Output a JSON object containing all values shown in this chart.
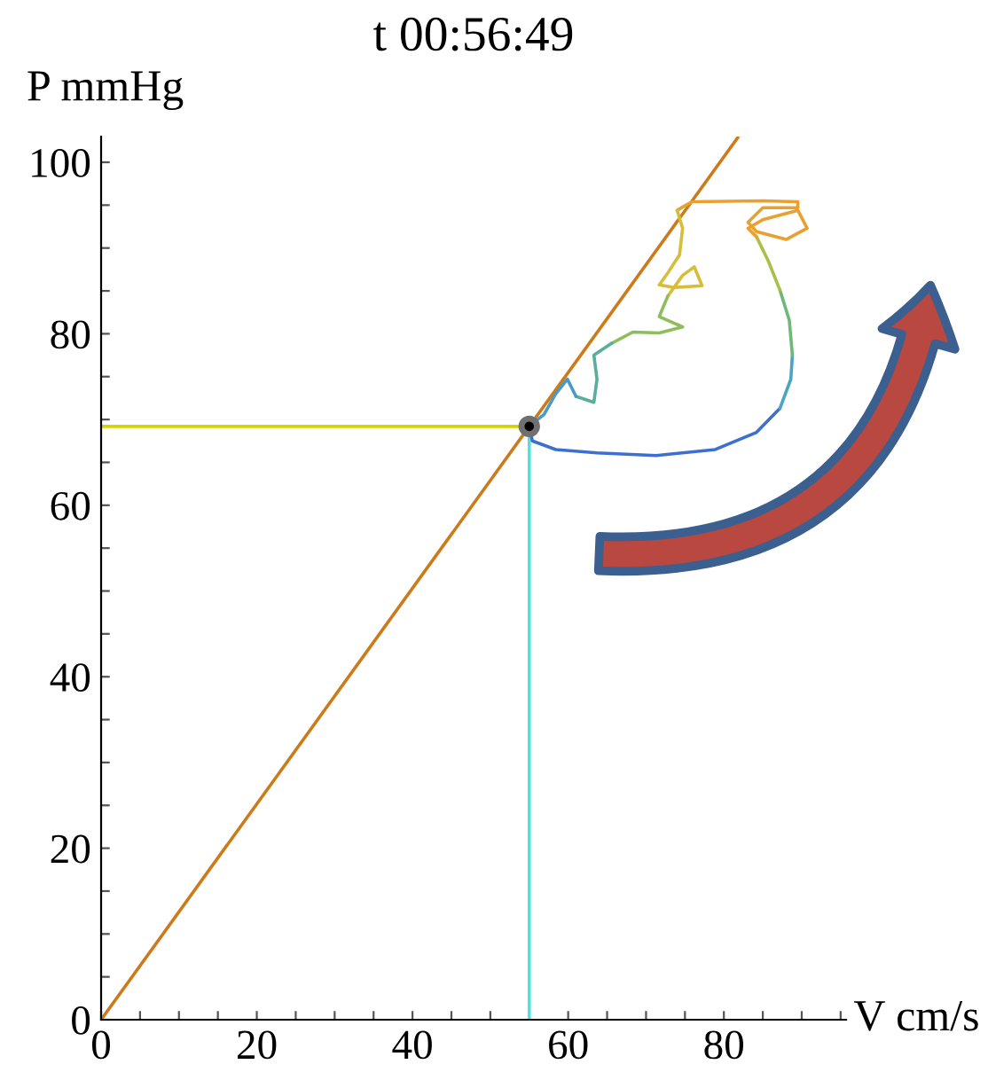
{
  "chart_data": {
    "type": "line",
    "title": "t 00:56:49",
    "xlabel": "V cm/s",
    "ylabel": "P mmHg",
    "xlim": [
      0,
      95.7
    ],
    "ylim": [
      0,
      103
    ],
    "xticks": [
      0,
      {
        "value": 5,
        "label": null
      },
      {
        "value": 10,
        "label": null
      },
      {
        "value": 15,
        "label": null
      },
      20,
      {
        "value": 25,
        "label": null
      },
      {
        "value": 30,
        "label": null
      },
      {
        "value": 35,
        "label": null
      },
      40,
      {
        "value": 45,
        "label": null
      },
      {
        "value": 50,
        "label": null
      },
      {
        "value": 55,
        "label": null
      },
      60,
      {
        "value": 65,
        "label": null
      },
      {
        "value": 70,
        "label": null
      },
      {
        "value": 75,
        "label": null
      },
      80,
      {
        "value": 85,
        "label": null
      },
      {
        "value": 90,
        "label": null
      },
      {
        "value": 95,
        "label": null
      }
    ],
    "yticks": [
      0,
      {
        "value": 5,
        "label": null
      },
      {
        "value": 10,
        "label": null
      },
      {
        "value": 15,
        "label": null
      },
      20,
      {
        "value": 25,
        "label": null
      },
      {
        "value": 30,
        "label": null
      },
      {
        "value": 35,
        "label": null
      },
      40,
      {
        "value": 45,
        "label": null
      },
      {
        "value": 50,
        "label": null
      },
      {
        "value": 55,
        "label": null
      },
      60,
      {
        "value": 65,
        "label": null
      },
      {
        "value": 70,
        "label": null
      },
      {
        "value": 75,
        "label": null
      },
      80,
      {
        "value": 85,
        "label": null
      },
      {
        "value": 90,
        "label": null
      },
      {
        "value": 95,
        "label": null
      },
      100
    ],
    "grid": false,
    "line_style": "solid",
    "series": [
      {
        "color": "#cc7a1a",
        "x": [
          0,
          81.8
        ],
        "values": [
          0,
          102.9
        ]
      },
      {
        "color": "#d4d400",
        "x": [
          0,
          55.0
        ],
        "values": [
          69.2,
          69.2
        ]
      },
      {
        "color": "#50e0e0",
        "x": [
          55.0,
          55.0
        ],
        "values": [
          0,
          69.2
        ]
      },
      {
        "color": "#3d6fd0",
        "x": [
          55.0,
          55.4,
          58.4,
          63.7,
          71.3,
          78.9,
          84.2,
          87.2
        ],
        "values": [
          69.2,
          67.5,
          66.5,
          66.1,
          65.8,
          66.5,
          68.5,
          71.3
        ]
      },
      {
        "color": "#4aa6c0",
        "x": [
          87.2,
          88.6,
          88.8
        ],
        "values": [
          71.3,
          74.7,
          77.5
        ]
      },
      {
        "color": "#6fb87a",
        "x": [
          88.8,
          88.4,
          87.2
        ],
        "values": [
          77.5,
          81.6,
          85.1
        ]
      },
      {
        "color": "#a8c04a",
        "x": [
          87.2,
          85.7,
          84.2
        ],
        "values": [
          85.1,
          88.5,
          91.3
        ]
      },
      {
        "color": "#e8a030",
        "x": [
          84.2,
          83.1,
          85.0,
          89.5,
          90.7,
          88.0,
          84.2,
          83.1,
          85.0,
          89.5,
          89.5,
          85.0,
          75.9,
          74.0
        ],
        "values": [
          91.3,
          92.3,
          93.3,
          94.4,
          92.3,
          91.0,
          91.9,
          93.0,
          94.7,
          94.7,
          95.4,
          95.5,
          95.4,
          94.4
        ]
      },
      {
        "color": "#d6bd3a",
        "x": [
          74.0,
          74.7,
          74.3,
          72.8,
          71.7,
          73.6,
          77.2,
          76.2,
          74.7,
          72.8
        ],
        "values": [
          94.4,
          92.3,
          89.2,
          87.1,
          85.7,
          85.4,
          85.6,
          87.8,
          86.8,
          84.4
        ]
      },
      {
        "color": "#8fbc5c",
        "x": [
          72.8,
          71.7,
          74.7,
          71.7,
          68.3,
          65.6
        ],
        "values": [
          84.4,
          82.0,
          80.8,
          80.1,
          80.2,
          78.9
        ]
      },
      {
        "color": "#5aae9a",
        "x": [
          65.6,
          63.3,
          63.7,
          63.3,
          61.0
        ],
        "values": [
          78.9,
          77.5,
          74.7,
          72.0,
          72.7
        ]
      },
      {
        "color": "#4a9ac8",
        "x": [
          61.0,
          59.9,
          58.4,
          56.9,
          55.0
        ],
        "values": [
          72.7,
          74.7,
          73.0,
          70.6,
          69.2
        ]
      },
      {
        "type": "scatter",
        "marker": "circle",
        "color": "#707070",
        "x": [
          55.0
        ],
        "values": [
          69.2
        ]
      }
    ]
  }
}
